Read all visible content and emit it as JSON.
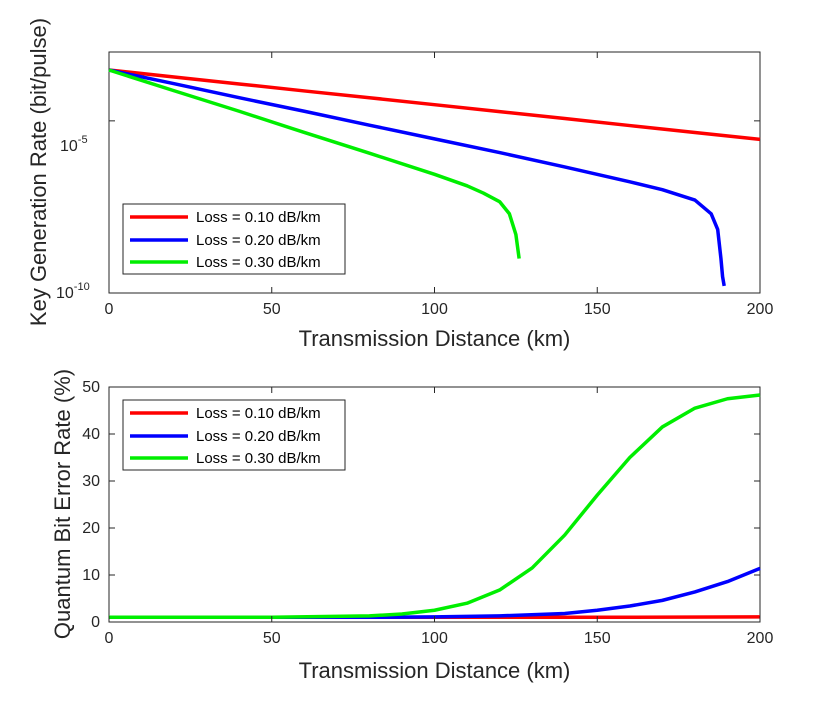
{
  "chart_data": [
    {
      "type": "line",
      "xlabel": "Transmission Distance (km)",
      "ylabel": "Key Generation Rate (bit/pulse)",
      "xlim": [
        0,
        200
      ],
      "ylim": [
        1e-10,
        0.001
      ],
      "yscale": "log",
      "xticks": [
        "0",
        "50",
        "100",
        "150",
        "200"
      ],
      "yticks": [
        {
          "base": "10",
          "exp": "-5",
          "value": 1e-05
        },
        {
          "base": "10",
          "exp": "-10",
          "value": 1e-10
        }
      ],
      "legend_position": "lower-left",
      "series": [
        {
          "name": "Loss = 0.10 dB/km",
          "color": "#ff0000",
          "x": [
            0,
            20,
            40,
            60,
            80,
            100,
            120,
            140,
            160,
            180,
            200
          ],
          "y": [
            0.0003,
            0.000188,
            0.000118,
            7.4e-05,
            4.7e-05,
            2.95e-05,
            1.85e-05,
            1.17e-05,
            7.3e-06,
            4.6e-06,
            2.9e-06
          ]
        },
        {
          "name": "Loss = 0.20 dB/km",
          "color": "#0000ff",
          "x": [
            0,
            20,
            40,
            60,
            80,
            100,
            120,
            140,
            160,
            170,
            180,
            185,
            187,
            188,
            188.5,
            189
          ],
          "y": [
            0.0003,
            0.00012,
            4.7e-05,
            1.9e-05,
            7.5e-06,
            3e-06,
            1.2e-06,
            4.6e-07,
            1.7e-07,
            1e-07,
            5e-08,
            2e-08,
            7e-09,
            1e-09,
            3e-10,
            1.6e-10
          ]
        },
        {
          "name": "Loss = 0.30 dB/km",
          "color": "#00ee00",
          "x": [
            0,
            20,
            40,
            60,
            80,
            100,
            110,
            115,
            120,
            123,
            125,
            126
          ],
          "y": [
            0.0003,
            7.5e-05,
            1.9e-05,
            4.6e-06,
            1.15e-06,
            2.8e-07,
            1.3e-07,
            8e-08,
            4.5e-08,
            2e-08,
            5e-09,
            1e-09
          ]
        }
      ]
    },
    {
      "type": "line",
      "xlabel": "Transmission Distance (km)",
      "ylabel": "Quantum Bit Error Rate (%)",
      "xlim": [
        0,
        200
      ],
      "ylim": [
        0,
        50
      ],
      "xticks": [
        "0",
        "50",
        "100",
        "150",
        "200"
      ],
      "yticks": [
        "0",
        "10",
        "20",
        "30",
        "40",
        "50"
      ],
      "legend_position": "top-left",
      "series": [
        {
          "name": "Loss = 0.10 dB/km",
          "color": "#ff0000",
          "x": [
            0,
            50,
            100,
            150,
            200
          ],
          "y": [
            1.0,
            1.0,
            1.0,
            1.0,
            1.1
          ]
        },
        {
          "name": "Loss = 0.20 dB/km",
          "color": "#0000ff",
          "x": [
            0,
            50,
            80,
            100,
            120,
            140,
            150,
            160,
            170,
            180,
            190,
            200
          ],
          "y": [
            1.0,
            1.0,
            1.0,
            1.1,
            1.3,
            1.8,
            2.5,
            3.4,
            4.6,
            6.4,
            8.6,
            11.4
          ]
        },
        {
          "name": "Loss = 0.30 dB/km",
          "color": "#00ee00",
          "x": [
            0,
            50,
            80,
            90,
            100,
            110,
            120,
            130,
            140,
            150,
            160,
            170,
            180,
            190,
            200
          ],
          "y": [
            1.0,
            1.0,
            1.3,
            1.7,
            2.5,
            4.0,
            6.8,
            11.5,
            18.5,
            27.0,
            35.0,
            41.5,
            45.5,
            47.5,
            48.3
          ]
        }
      ]
    }
  ]
}
